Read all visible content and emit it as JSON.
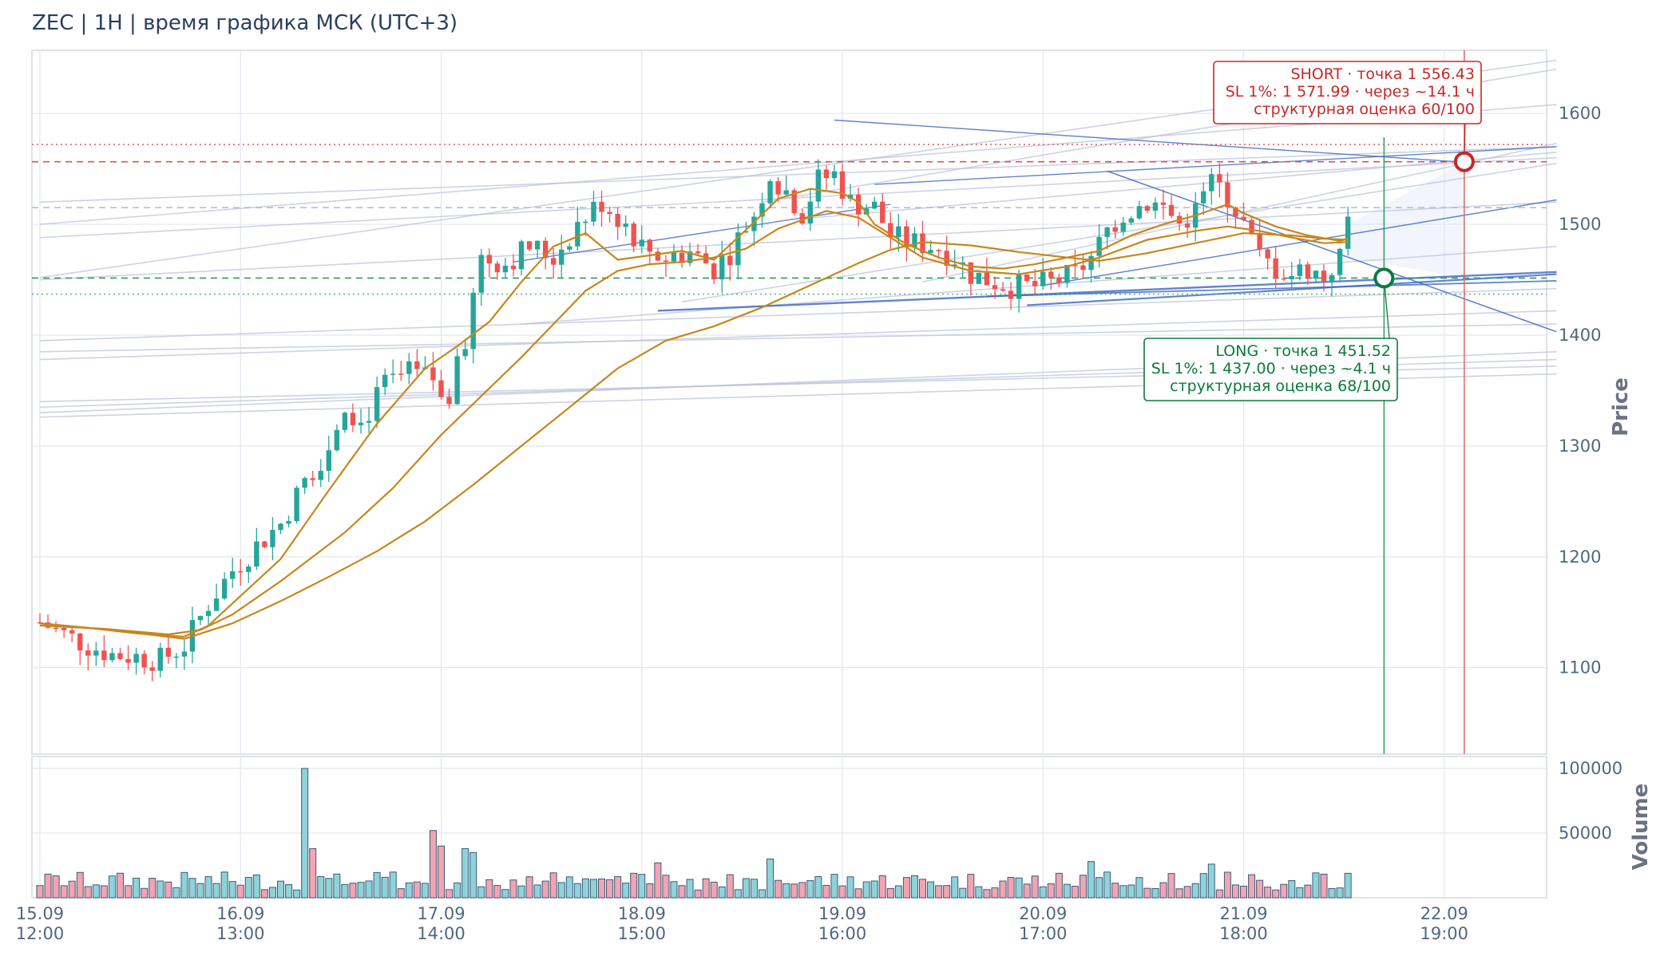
{
  "title": "ZEC | 1H | время графика МСК (UTC+3)",
  "chart_data": {
    "type": "candlestick",
    "y_axis_label": "Price",
    "volume_axis_label": "Volume",
    "ylim": [
      1022,
      1657
    ],
    "y_ticks": [
      1100,
      1200,
      1300,
      1400,
      1500,
      1600
    ],
    "volume_ylim": [
      0,
      100000
    ],
    "volume_ticks": [
      {
        "v": 50000,
        "label": "50000"
      },
      {
        "v": 100000,
        "label": "100000"
      }
    ],
    "x_ticks": [
      {
        "bar": 0,
        "label": [
          "15.09",
          "12:00"
        ]
      },
      {
        "bar": 25,
        "label": [
          "16.09",
          "13:00"
        ]
      },
      {
        "bar": 50,
        "label": [
          "17.09",
          "14:00"
        ]
      },
      {
        "bar": 75,
        "label": [
          "18.09",
          "15:00"
        ]
      },
      {
        "bar": 100,
        "label": [
          "19.09",
          "16:00"
        ]
      },
      {
        "bar": 125,
        "label": [
          "20.09",
          "17:00"
        ]
      },
      {
        "bar": 150,
        "label": [
          "21.09",
          "18:00"
        ]
      },
      {
        "bar": 175,
        "label": [
          "22.09",
          "19:00"
        ]
      }
    ],
    "colors": {
      "up": "#26a69a",
      "down": "#ef5350",
      "ma": "#c8861b",
      "short": "#c62828",
      "long": "#0b7a3b",
      "trend": "#3a66c4"
    },
    "anchors": [
      [
        0,
        1141
      ],
      [
        3,
        1130
      ],
      [
        6,
        1120
      ],
      [
        9,
        1112
      ],
      [
        12,
        1110
      ],
      [
        15,
        1107
      ],
      [
        18,
        1120
      ],
      [
        21,
        1158
      ],
      [
        24,
        1188
      ],
      [
        27,
        1210
      ],
      [
        30,
        1230
      ],
      [
        33,
        1268
      ],
      [
        36,
        1300
      ],
      [
        38,
        1340
      ],
      [
        40,
        1320
      ],
      [
        43,
        1355
      ],
      [
        46,
        1365
      ],
      [
        49,
        1360
      ],
      [
        51,
        1345
      ],
      [
        53,
        1395
      ],
      [
        55,
        1470
      ],
      [
        58,
        1465
      ],
      [
        61,
        1480
      ],
      [
        64,
        1470
      ],
      [
        67,
        1500
      ],
      [
        70,
        1520
      ],
      [
        73,
        1500
      ],
      [
        75,
        1480
      ],
      [
        78,
        1470
      ],
      [
        81,
        1475
      ],
      [
        84,
        1460
      ],
      [
        86,
        1475
      ],
      [
        89,
        1510
      ],
      [
        91,
        1545
      ],
      [
        93,
        1530
      ],
      [
        95,
        1510
      ],
      [
        97,
        1540
      ],
      [
        99,
        1545
      ],
      [
        101,
        1520
      ],
      [
        104,
        1515
      ],
      [
        106,
        1490
      ],
      [
        108,
        1484
      ],
      [
        110,
        1482
      ],
      [
        112,
        1479
      ],
      [
        114,
        1470
      ],
      [
        116,
        1455
      ],
      [
        118,
        1450
      ],
      [
        121,
        1444
      ],
      [
        124,
        1444
      ],
      [
        127,
        1450
      ],
      [
        129,
        1455
      ],
      [
        131,
        1470
      ],
      [
        133,
        1495
      ],
      [
        135,
        1510
      ],
      [
        138,
        1520
      ],
      [
        140,
        1515
      ],
      [
        142,
        1500
      ],
      [
        144,
        1512
      ],
      [
        146,
        1540
      ],
      [
        148,
        1525
      ],
      [
        150,
        1500
      ],
      [
        152,
        1470
      ],
      [
        154,
        1460
      ],
      [
        156,
        1455
      ],
      [
        158,
        1460
      ],
      [
        160,
        1452
      ],
      [
        162,
        1470
      ],
      [
        163,
        1505
      ]
    ],
    "ma_fast": [
      [
        0,
        1140
      ],
      [
        6,
        1136
      ],
      [
        12,
        1131
      ],
      [
        18,
        1128
      ],
      [
        21,
        1138
      ],
      [
        24,
        1158
      ],
      [
        30,
        1198
      ],
      [
        36,
        1260
      ],
      [
        42,
        1320
      ],
      [
        48,
        1370
      ],
      [
        52,
        1390
      ],
      [
        56,
        1412
      ],
      [
        60,
        1448
      ],
      [
        64,
        1480
      ],
      [
        68,
        1492
      ],
      [
        72,
        1468
      ],
      [
        76,
        1472
      ],
      [
        80,
        1476
      ],
      [
        84,
        1468
      ],
      [
        88,
        1495
      ],
      [
        92,
        1523
      ],
      [
        96,
        1532
      ],
      [
        100,
        1528
      ],
      [
        102,
        1520
      ],
      [
        104,
        1500
      ],
      [
        108,
        1482
      ],
      [
        112,
        1470
      ],
      [
        116,
        1462
      ],
      [
        120,
        1460
      ],
      [
        124,
        1464
      ],
      [
        128,
        1470
      ],
      [
        132,
        1476
      ],
      [
        136,
        1490
      ],
      [
        140,
        1500
      ],
      [
        144,
        1508
      ],
      [
        148,
        1518
      ],
      [
        150,
        1510
      ],
      [
        154,
        1498
      ],
      [
        158,
        1490
      ],
      [
        162,
        1485
      ],
      [
        163,
        1487
      ]
    ],
    "ma_mid": [
      [
        0,
        1138
      ],
      [
        8,
        1135
      ],
      [
        16,
        1130
      ],
      [
        20,
        1134
      ],
      [
        24,
        1148
      ],
      [
        30,
        1178
      ],
      [
        34,
        1200
      ],
      [
        38,
        1222
      ],
      [
        44,
        1262
      ],
      [
        50,
        1310
      ],
      [
        56,
        1352
      ],
      [
        60,
        1380
      ],
      [
        64,
        1410
      ],
      [
        68,
        1440
      ],
      [
        72,
        1458
      ],
      [
        76,
        1464
      ],
      [
        80,
        1466
      ],
      [
        84,
        1470
      ],
      [
        88,
        1478
      ],
      [
        92,
        1496
      ],
      [
        98,
        1512
      ],
      [
        102,
        1506
      ],
      [
        106,
        1488
      ],
      [
        110,
        1470
      ],
      [
        116,
        1458
      ],
      [
        122,
        1455
      ],
      [
        128,
        1462
      ],
      [
        132,
        1470
      ],
      [
        138,
        1486
      ],
      [
        144,
        1494
      ],
      [
        148,
        1498
      ],
      [
        152,
        1494
      ],
      [
        156,
        1488
      ],
      [
        160,
        1483
      ],
      [
        163,
        1484
      ]
    ],
    "ma_slow": [
      [
        0,
        1140
      ],
      [
        10,
        1133
      ],
      [
        18,
        1126
      ],
      [
        24,
        1140
      ],
      [
        30,
        1160
      ],
      [
        36,
        1182
      ],
      [
        42,
        1205
      ],
      [
        48,
        1232
      ],
      [
        54,
        1265
      ],
      [
        60,
        1300
      ],
      [
        66,
        1335
      ],
      [
        72,
        1370
      ],
      [
        78,
        1395
      ],
      [
        84,
        1408
      ],
      [
        90,
        1425
      ],
      [
        96,
        1445
      ],
      [
        102,
        1465
      ],
      [
        106,
        1477
      ],
      [
        110,
        1484
      ],
      [
        116,
        1481
      ],
      [
        122,
        1475
      ],
      [
        128,
        1470
      ],
      [
        132,
        1467
      ],
      [
        138,
        1474
      ],
      [
        144,
        1483
      ],
      [
        150,
        1492
      ],
      [
        156,
        1490
      ],
      [
        160,
        1487
      ],
      [
        163,
        1486
      ]
    ],
    "levels": [
      {
        "y": 1572,
        "color": "#e06666",
        "style": "dotted"
      },
      {
        "y": 1556.43,
        "color": "#d9534f",
        "style": "dashed"
      },
      {
        "y": 1515,
        "color": "#b8bcd0",
        "style": "dashed"
      },
      {
        "y": 1451.52,
        "color": "#2e9e5b",
        "style": "dashed"
      },
      {
        "y": 1437,
        "color": "#5cb88a",
        "style": "dotted"
      }
    ],
    "short": {
      "bar": 177.5,
      "price": 1556.43,
      "color": "#c62828",
      "lines": [
        "SHORT · точка 1 556.43",
        "SL 1%: 1 571.99 · через ~14.1 ч",
        "структурная оценка 60/100"
      ]
    },
    "long": {
      "bar": 167.5,
      "price": 1451.52,
      "color": "#0b7a3b",
      "lines": [
        "LONG · точка 1 451.52",
        "SL 1%: 1 437.00 · через ~4.1 ч",
        "структурная оценка 68/100"
      ]
    }
  }
}
